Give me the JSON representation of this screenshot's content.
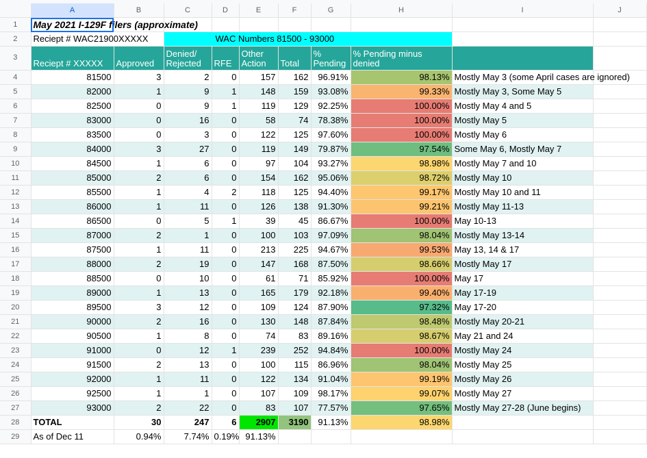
{
  "columns": [
    "A",
    "B",
    "C",
    "D",
    "E",
    "F",
    "G",
    "H",
    "I",
    "J"
  ],
  "title": "May 2021 I-129F filers (approximate)",
  "row2": {
    "a": "Reciept # WAC21900XXXXX",
    "e": "WAC Numbers 81500 - 93000"
  },
  "headers": {
    "a": "Reciept # XXXXX",
    "b": "Approved",
    "c": "Denied/ Rejected",
    "d": "RFE",
    "e": "Other Action",
    "f": "Total",
    "g": "% Pending",
    "h": "% Pending minus denied"
  },
  "rows": [
    {
      "receipt": "81500",
      "approved": "3",
      "denied": "2",
      "rfe": "0",
      "other": "157",
      "total": "162",
      "pending": "96.91%",
      "pmd": "98.13%",
      "pmd_color": "#a7c56f",
      "note": "Mostly May 3 (some April cases are ignored)"
    },
    {
      "receipt": "82000",
      "approved": "1",
      "denied": "9",
      "rfe": "1",
      "other": "148",
      "total": "159",
      "pending": "93.08%",
      "pmd": "99.33%",
      "pmd_color": "#f9b46f",
      "note": "Mostly May 3, Some May 5"
    },
    {
      "receipt": "82500",
      "approved": "0",
      "denied": "9",
      "rfe": "1",
      "other": "119",
      "total": "129",
      "pending": "92.25%",
      "pmd": "100.00%",
      "pmd_color": "#e67c73",
      "note": "Mostly May 4 and 5"
    },
    {
      "receipt": "83000",
      "approved": "0",
      "denied": "16",
      "rfe": "0",
      "other": "58",
      "total": "74",
      "pending": "78.38%",
      "pmd": "100.00%",
      "pmd_color": "#e67c73",
      "note": "Mostly May 5"
    },
    {
      "receipt": "83500",
      "approved": "0",
      "denied": "3",
      "rfe": "0",
      "other": "122",
      "total": "125",
      "pending": "97.60%",
      "pmd": "100.00%",
      "pmd_color": "#e67c73",
      "note": "Mostly May 6"
    },
    {
      "receipt": "84000",
      "approved": "3",
      "denied": "27",
      "rfe": "0",
      "other": "119",
      "total": "149",
      "pending": "79.87%",
      "pmd": "97.54%",
      "pmd_color": "#6fbe80",
      "note": "Some May 6, Mostly May 7"
    },
    {
      "receipt": "84500",
      "approved": "1",
      "denied": "6",
      "rfe": "0",
      "other": "97",
      "total": "104",
      "pending": "93.27%",
      "pmd": "98.98%",
      "pmd_color": "#fcd670",
      "note": "Mostly May 7 and 10"
    },
    {
      "receipt": "85000",
      "approved": "2",
      "denied": "6",
      "rfe": "0",
      "other": "154",
      "total": "162",
      "pending": "95.06%",
      "pmd": "98.72%",
      "pmd_color": "#dccf6d",
      "note": "Mostly May 10"
    },
    {
      "receipt": "85500",
      "approved": "1",
      "denied": "4",
      "rfe": "2",
      "other": "118",
      "total": "125",
      "pending": "94.40%",
      "pmd": "99.17%",
      "pmd_color": "#fdc66f",
      "note": "Mostly May 10 and 11"
    },
    {
      "receipt": "86000",
      "approved": "1",
      "denied": "11",
      "rfe": "0",
      "other": "126",
      "total": "138",
      "pending": "91.30%",
      "pmd": "99.21%",
      "pmd_color": "#fdc46f",
      "note": "Mostly May 11-13"
    },
    {
      "receipt": "86500",
      "approved": "0",
      "denied": "5",
      "rfe": "1",
      "other": "39",
      "total": "45",
      "pending": "86.67%",
      "pmd": "100.00%",
      "pmd_color": "#e67c73",
      "note": "May 10-13"
    },
    {
      "receipt": "87000",
      "approved": "2",
      "denied": "1",
      "rfe": "0",
      "other": "100",
      "total": "103",
      "pending": "97.09%",
      "pmd": "98.04%",
      "pmd_color": "#a0c374",
      "note": "Mostly May 13-14"
    },
    {
      "receipt": "87500",
      "approved": "1",
      "denied": "11",
      "rfe": "0",
      "other": "213",
      "total": "225",
      "pending": "94.67%",
      "pmd": "99.53%",
      "pmd_color": "#f8a971",
      "note": "May 13, 14 & 17"
    },
    {
      "receipt": "88000",
      "approved": "2",
      "denied": "19",
      "rfe": "0",
      "other": "147",
      "total": "168",
      "pending": "87.50%",
      "pmd": "98.66%",
      "pmd_color": "#d5cd6e",
      "note": "Mostly May 17"
    },
    {
      "receipt": "88500",
      "approved": "0",
      "denied": "10",
      "rfe": "0",
      "other": "61",
      "total": "71",
      "pending": "85.92%",
      "pmd": "100.00%",
      "pmd_color": "#e67c73",
      "note": "May 17"
    },
    {
      "receipt": "89000",
      "approved": "1",
      "denied": "13",
      "rfe": "0",
      "other": "165",
      "total": "179",
      "pending": "92.18%",
      "pmd": "99.40%",
      "pmd_color": "#f9b06f",
      "note": "May 17-19"
    },
    {
      "receipt": "89500",
      "approved": "3",
      "denied": "12",
      "rfe": "0",
      "other": "109",
      "total": "124",
      "pending": "87.90%",
      "pmd": "97.32%",
      "pmd_color": "#57bb8a",
      "note": "May 17-20"
    },
    {
      "receipt": "90000",
      "approved": "2",
      "denied": "16",
      "rfe": "0",
      "other": "130",
      "total": "148",
      "pending": "87.84%",
      "pmd": "98.48%",
      "pmd_color": "#bfc96f",
      "note": "Mostly May 20-21"
    },
    {
      "receipt": "90500",
      "approved": "1",
      "denied": "8",
      "rfe": "0",
      "other": "74",
      "total": "83",
      "pending": "89.16%",
      "pmd": "98.67%",
      "pmd_color": "#d6ce6e",
      "note": "May 21 and 24"
    },
    {
      "receipt": "91000",
      "approved": "0",
      "denied": "12",
      "rfe": "1",
      "other": "239",
      "total": "252",
      "pending": "94.84%",
      "pmd": "100.00%",
      "pmd_color": "#e67c73",
      "note": "Mostly May 24"
    },
    {
      "receipt": "91500",
      "approved": "2",
      "denied": "13",
      "rfe": "0",
      "other": "100",
      "total": "115",
      "pending": "86.96%",
      "pmd": "98.04%",
      "pmd_color": "#a0c374",
      "note": "Mostly May 25"
    },
    {
      "receipt": "92000",
      "approved": "1",
      "denied": "11",
      "rfe": "0",
      "other": "122",
      "total": "134",
      "pending": "91.04%",
      "pmd": "99.19%",
      "pmd_color": "#fdc56f",
      "note": "Mostly May 26"
    },
    {
      "receipt": "92500",
      "approved": "1",
      "denied": "1",
      "rfe": "0",
      "other": "107",
      "total": "109",
      "pending": "98.17%",
      "pmd": "99.07%",
      "pmd_color": "#fdd26f",
      "note": "Mostly May 27"
    },
    {
      "receipt": "93000",
      "approved": "2",
      "denied": "22",
      "rfe": "0",
      "other": "83",
      "total": "107",
      "pending": "77.57%",
      "pmd": "97.65%",
      "pmd_color": "#74bf7d",
      "note": "Mostly May 27-28 (June begins)"
    }
  ],
  "total": {
    "label": "TOTAL",
    "approved": "30",
    "denied": "247",
    "rfe": "6",
    "other": "2907",
    "total": "3190",
    "pending": "91.13%",
    "pmd": "98.98%",
    "pmd_color": "#fcd670"
  },
  "asof": {
    "label": "As of Dec 11",
    "b": "0.94%",
    "c": "7.74%",
    "d": "0.19%",
    "e": "91.13%"
  },
  "colors": {
    "header_teal": "#26a69a",
    "band": "#e0f2f1",
    "cyan": "#00ffff",
    "selection": "#1a73e8",
    "total_other": "#00e600",
    "total_total": "#93c47d"
  }
}
